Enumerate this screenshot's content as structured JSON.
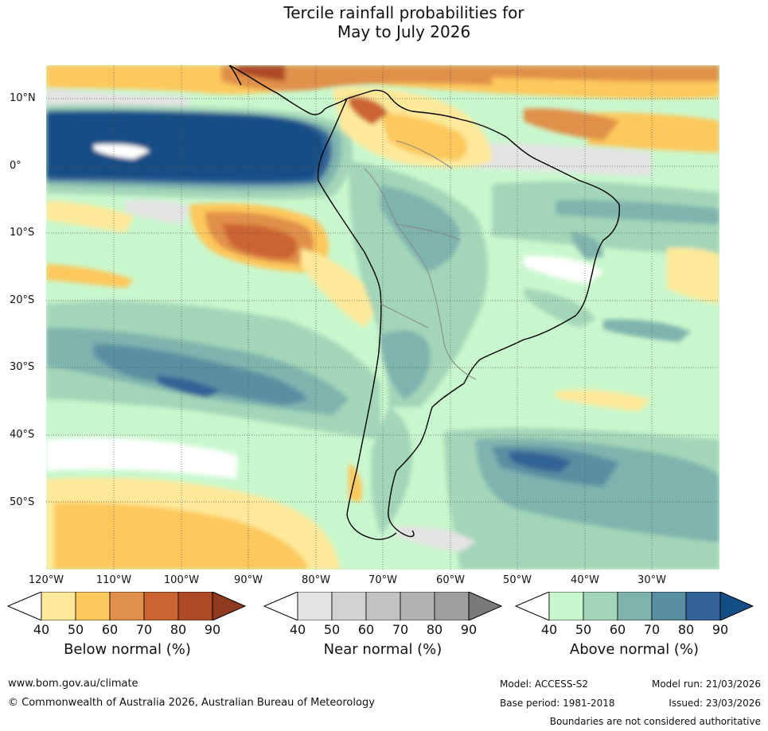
{
  "title": {
    "line1": "Tercile rainfall probabilities for",
    "line2": "May to July 2026"
  },
  "map": {
    "lat_labels": [
      "10°N",
      "0°",
      "10°S",
      "20°S",
      "30°S",
      "40°S",
      "50°S"
    ],
    "lon_labels": [
      "120°W",
      "110°W",
      "100°W",
      "90°W",
      "80°W",
      "70°W",
      "60°W",
      "50°W",
      "40°W",
      "30°W"
    ],
    "colors": {
      "ocean_wet_core": "#124d85",
      "land_border": "#000000",
      "national_border": "#888888"
    }
  },
  "legends": {
    "below": {
      "title": "Below normal (%)",
      "ticks": [
        "40",
        "50",
        "60",
        "70",
        "80",
        "90"
      ],
      "colors": [
        "#fee99a",
        "#fdc85c",
        "#e0904a",
        "#cc6333",
        "#ad4a27",
        "#8f3a1f"
      ]
    },
    "near": {
      "title": "Near normal (%)",
      "ticks": [
        "40",
        "50",
        "60",
        "70",
        "80",
        "90"
      ],
      "colors": [
        "#e3e3e3",
        "#d2d2d2",
        "#c2c2c2",
        "#b2b2b2",
        "#9e9e9e",
        "#7a7a7a"
      ]
    },
    "above": {
      "title": "Above normal (%)",
      "ticks": [
        "40",
        "50",
        "60",
        "70",
        "80",
        "90"
      ],
      "colors": [
        "#c9f7cd",
        "#a3d6b8",
        "#7fb3ae",
        "#5a8fa2",
        "#336396",
        "#124d85"
      ]
    }
  },
  "footer": {
    "url": "www.bom.gov.au/climate",
    "copyright": "© Commonwealth of Australia 2026, Australian Bureau of Meteorology",
    "model": "Model: ACCESS-S2",
    "model_run": "Model run: 21/03/2026",
    "base_period": "Base period: 1981-2018",
    "issued": "Issued: 23/03/2026",
    "disclaimer": "Boundaries are not considered authoritative"
  }
}
